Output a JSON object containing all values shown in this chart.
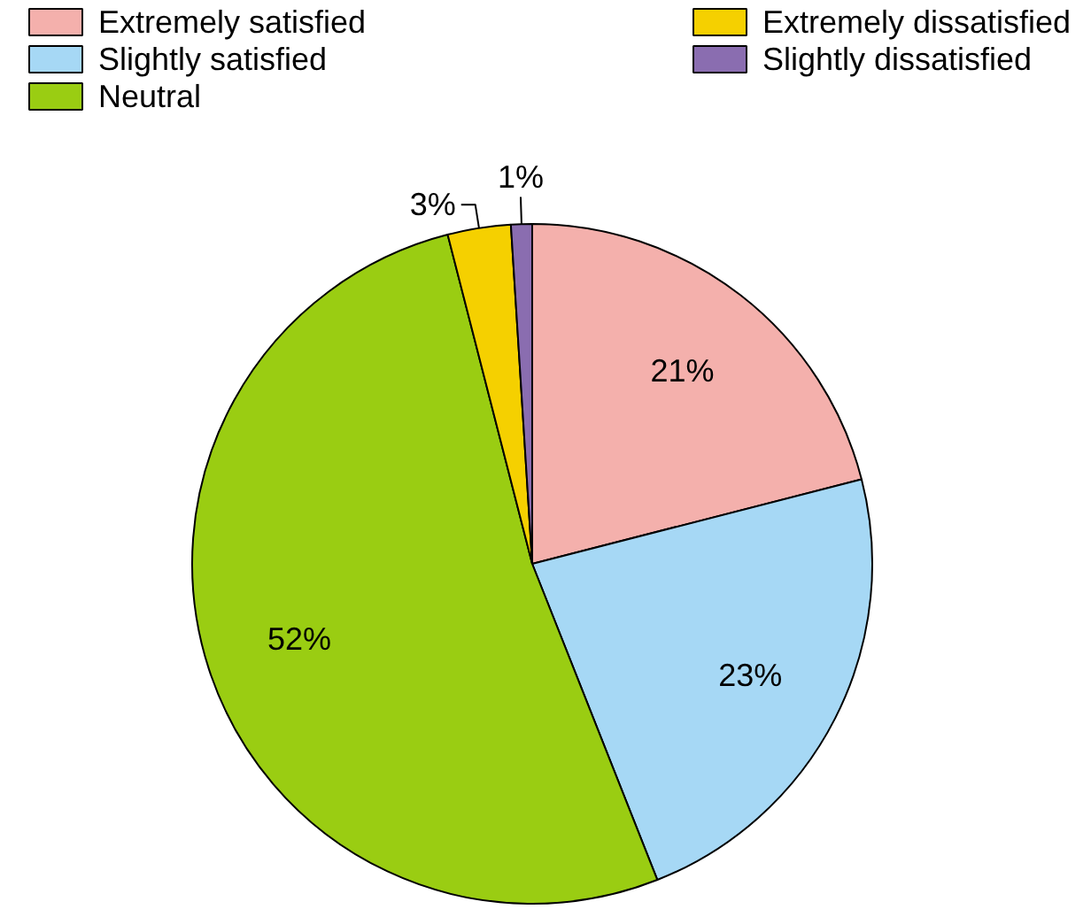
{
  "chart_data": {
    "type": "pie",
    "categories": [
      "Extremely satisfied",
      "Slightly satisfied",
      "Neutral",
      "Extremely dissatisfied",
      "Slightly dissatisfied"
    ],
    "values": [
      21,
      23,
      52,
      3,
      1
    ],
    "colors": [
      "#f4b0ac",
      "#a6d8f5",
      "#9acd12",
      "#f5d000",
      "#8a6db0"
    ],
    "value_labels": [
      "21%",
      "23%",
      "52%",
      "3%",
      "1%"
    ],
    "legend": "top"
  }
}
